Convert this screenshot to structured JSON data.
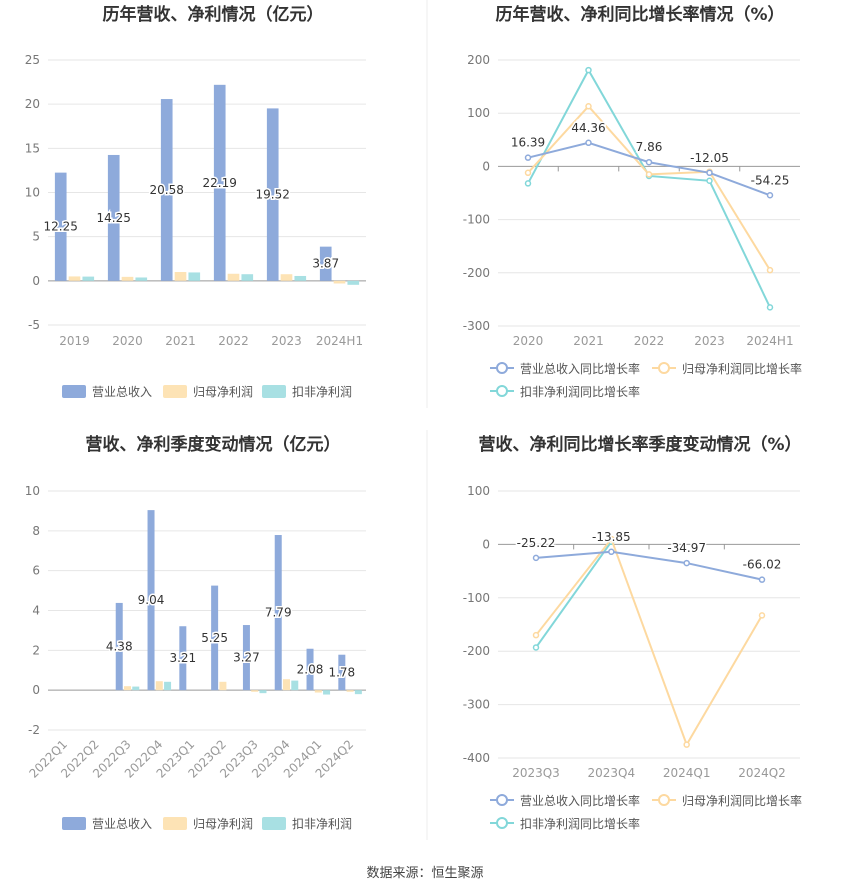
{
  "source_label": "数据来源：恒生聚源",
  "colors": {
    "revenue": "#8eaadb",
    "net_profit": "#fde3b5",
    "deducted_profit": "#a8e0e3",
    "revenue_line": "#8eaadb",
    "net_profit_line": "#fdd9a0",
    "deducted_line": "#82d7d9",
    "grid": "#e6e6e6",
    "axis_text": "#777777",
    "title": "#333333"
  },
  "chart_data": [
    {
      "type": "bar",
      "title": "历年营收、净利情况（亿元）",
      "categories": [
        "2019",
        "2020",
        "2021",
        "2022",
        "2023",
        "2024H1"
      ],
      "ylim": [
        -5,
        25
      ],
      "yticks": [
        "-5",
        "0",
        "5",
        "10",
        "15",
        "20",
        "25"
      ],
      "grid": true,
      "legend_position": "bottom",
      "series": [
        {
          "name": "营业总收入",
          "values": [
            12.25,
            14.25,
            20.58,
            22.19,
            19.52,
            3.87
          ],
          "labels": [
            "12.25",
            "14.25",
            "20.58",
            "22.19",
            "19.52",
            "3.87"
          ]
        },
        {
          "name": "归母净利润",
          "values": [
            0.5,
            0.45,
            1.0,
            0.8,
            0.75,
            -0.3
          ]
        },
        {
          "name": "扣非净利润",
          "values": [
            0.48,
            0.38,
            0.95,
            0.75,
            0.55,
            -0.45
          ]
        }
      ]
    },
    {
      "type": "line",
      "title": "历年营收、净利同比增长率情况（%）",
      "categories": [
        "2020",
        "2021",
        "2022",
        "2023",
        "2024H1"
      ],
      "ylim": [
        -300,
        200
      ],
      "yticks": [
        "-300",
        "-200",
        "-100",
        "0",
        "100",
        "200"
      ],
      "grid": true,
      "legend_position": "bottom",
      "series": [
        {
          "name": "营业总收入同比增长率",
          "values": [
            16.39,
            44.36,
            7.86,
            -12.05,
            -54.25
          ],
          "labels": [
            "16.39",
            "44.36",
            "7.86",
            "-12.05",
            "-54.25"
          ]
        },
        {
          "name": "归母净利润同比增长率",
          "values": [
            -12,
            113,
            -15,
            -10,
            -195
          ]
        },
        {
          "name": "扣非净利润同比增长率",
          "values": [
            -32,
            181,
            -18,
            -27,
            -265
          ]
        }
      ]
    },
    {
      "type": "bar",
      "title": "营收、净利季度变动情况（亿元）",
      "categories": [
        "2022Q1",
        "2022Q2",
        "2022Q3",
        "2022Q4",
        "2023Q1",
        "2023Q2",
        "2023Q3",
        "2023Q4",
        "2024Q1",
        "2024Q2"
      ],
      "ylim": [
        -2,
        10
      ],
      "yticks": [
        "-2",
        "0",
        "2",
        "4",
        "6",
        "8",
        "10"
      ],
      "grid": true,
      "legend_position": "bottom",
      "series": [
        {
          "name": "营业总收入",
          "values": [
            null,
            null,
            4.38,
            9.04,
            3.21,
            5.25,
            3.27,
            7.79,
            2.08,
            1.78
          ],
          "labels": [
            "",
            "",
            "4.38",
            "9.04",
            "3.21",
            "5.25",
            "3.27",
            "7.79",
            "2.08",
            "1.78"
          ]
        },
        {
          "name": "归母净利润",
          "values": [
            null,
            null,
            0.2,
            0.45,
            null,
            0.42,
            -0.08,
            0.55,
            -0.12,
            -0.08
          ]
        },
        {
          "name": "扣非净利润",
          "values": [
            null,
            null,
            0.18,
            0.42,
            null,
            null,
            -0.15,
            0.48,
            -0.22,
            -0.2
          ]
        }
      ]
    },
    {
      "type": "line",
      "title": "营收、净利同比增长率季度变动情况（%）",
      "categories": [
        "2023Q3",
        "2023Q4",
        "2024Q1",
        "2024Q2"
      ],
      "ylim": [
        -400,
        100
      ],
      "yticks": [
        "-400",
        "-300",
        "-200",
        "-100",
        "0",
        "100"
      ],
      "grid": true,
      "legend_position": "bottom",
      "series": [
        {
          "name": "营业总收入同比增长率",
          "values": [
            -25.22,
            -13.85,
            -34.97,
            -66.02
          ],
          "labels": [
            "-25.22",
            "-13.85",
            "-34.97",
            "-66.02"
          ]
        },
        {
          "name": "归母净利润同比增长率",
          "values": [
            -170,
            10,
            -375,
            -133
          ]
        },
        {
          "name": "扣非净利润同比增长率",
          "values": [
            -193,
            5,
            null,
            null
          ]
        }
      ]
    }
  ]
}
